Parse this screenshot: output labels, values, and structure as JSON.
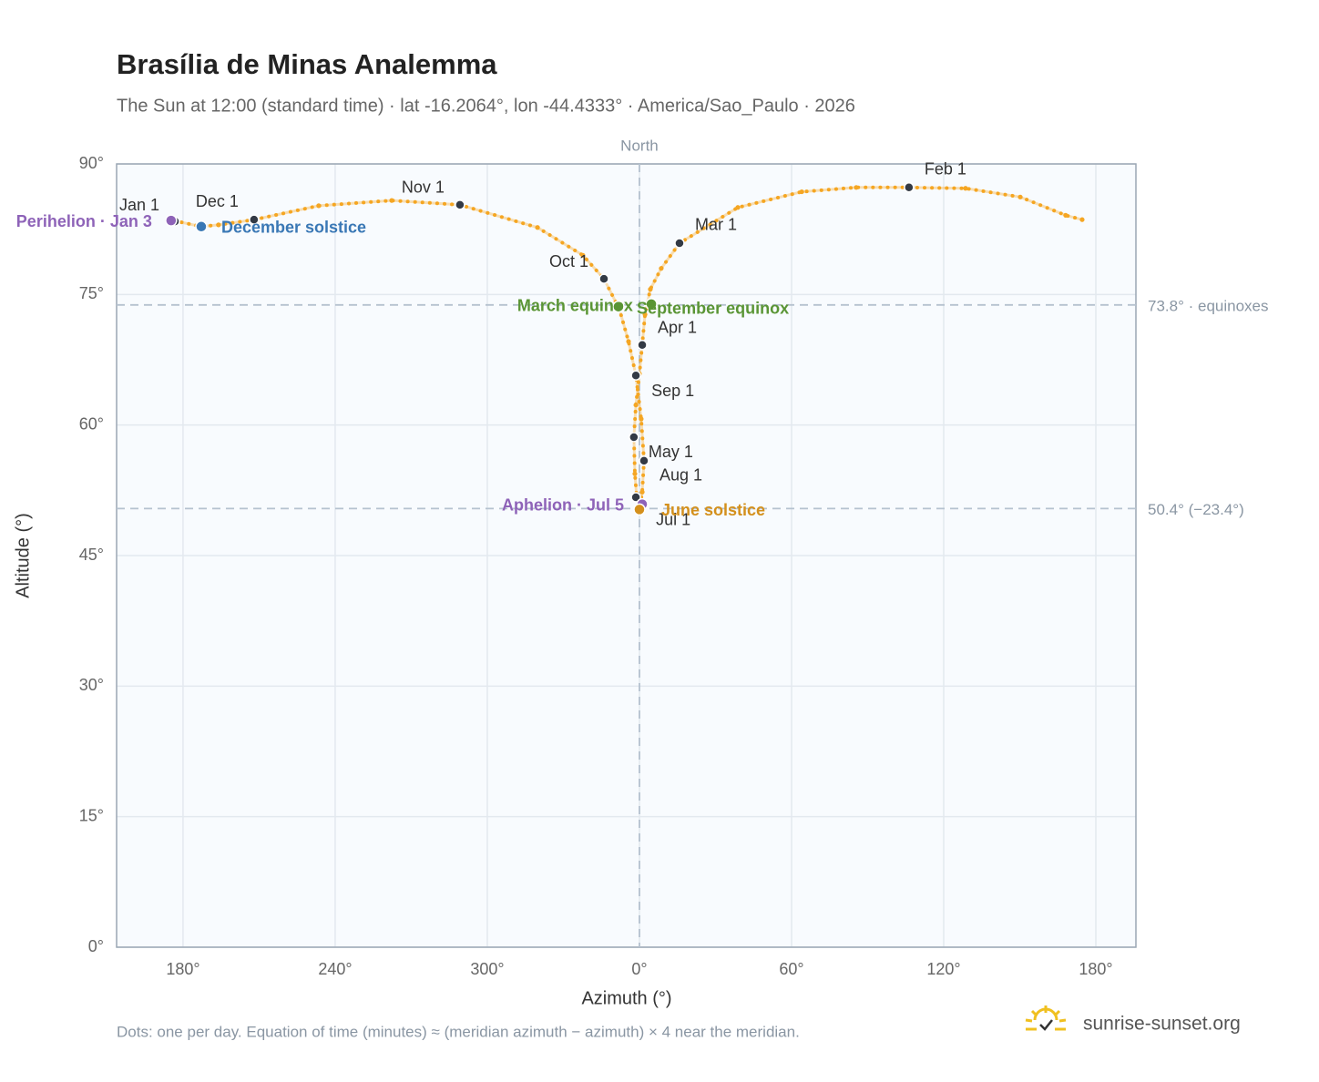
{
  "chart_data": {
    "type": "scatter",
    "title": "Brasília de Minas Analemma",
    "subtitle": "The Sun at 12:00 (standard time) · lat -16.2064°, lon -44.4333° · America/Sao_Paulo · 2026",
    "x_label": "Azimuth (°)",
    "y_label": "Altitude (°)",
    "xlim": [
      153.8,
      555.8
    ],
    "ylim": [
      0,
      90
    ],
    "xticks": [
      {
        "value": 180,
        "label": "180°"
      },
      {
        "value": 240,
        "label": "240°"
      },
      {
        "value": 300,
        "label": "300°"
      },
      {
        "value": 360,
        "label": "0°"
      },
      {
        "value": 420,
        "label": "60°"
      },
      {
        "value": 480,
        "label": "120°"
      },
      {
        "value": 540,
        "label": "180°"
      }
    ],
    "yticks": [
      {
        "value": 0,
        "label": "0°"
      },
      {
        "value": 15,
        "label": "15°"
      },
      {
        "value": 30,
        "label": "30°"
      },
      {
        "value": 45,
        "label": "45°"
      },
      {
        "value": 60,
        "label": "60°"
      },
      {
        "value": 75,
        "label": "75°"
      },
      {
        "value": 90,
        "label": "90°"
      }
    ],
    "grid": true,
    "series": [
      {
        "color": "#f5a623",
        "x": [
          176.8,
          175.3,
          null,
          534.6,
          528.1,
          510.2,
          488.6,
          466.3,
          445.5,
          424.0,
          398.8,
          375.8,
          368.6,
          364.3,
          362.2,
          361.1,
          360.0,
          358.6,
          357.8,
          358.2,
          358.9,
          360.0,
          361.1,
          361.8,
          360.7,
          358.6,
          355.7,
          352.1,
          346.0,
          337.7,
          319.8,
          289.2,
          262.3,
          233.5,
          208.0,
          194.0,
          187.2,
          177.8
        ],
        "values": [
          83.4,
          83.5,
          null,
          83.6,
          84.1,
          86.2,
          87.2,
          87.3,
          87.3,
          86.8,
          85.0,
          80.9,
          78.0,
          75.6,
          72.7,
          69.2,
          65.9,
          62.3,
          58.6,
          54.4,
          51.8,
          50.3,
          52.3,
          55.9,
          60.7,
          65.7,
          69.6,
          73.3,
          76.8,
          79.5,
          82.7,
          85.3,
          85.8,
          85.2,
          83.6,
          83.0,
          82.8,
          83.4
        ]
      }
    ],
    "month_markers": [
      {
        "text": "Jan 1",
        "x": 176.8,
        "y": 83.4
      },
      {
        "text": "Feb 1",
        "x": 466.3,
        "y": 87.3
      },
      {
        "text": "Mar 1",
        "x": 375.8,
        "y": 80.9
      },
      {
        "text": "Apr 1",
        "x": 361.1,
        "y": 69.2
      },
      {
        "text": "May 1",
        "x": 357.8,
        "y": 58.6
      },
      {
        "text": "Jul 1",
        "x": 358.6,
        "y": 51.7
      },
      {
        "text": "Aug 1",
        "x": 361.8,
        "y": 55.9
      },
      {
        "text": "Sep 1",
        "x": 358.6,
        "y": 65.7
      },
      {
        "text": "Oct 1",
        "x": 346.0,
        "y": 76.8
      },
      {
        "text": "Nov 1",
        "x": 289.2,
        "y": 85.3
      },
      {
        "text": "Dec 1",
        "x": 208.0,
        "y": 83.6
      }
    ],
    "events": [
      {
        "text": "Perihelion · Jan 3",
        "x": 175.3,
        "y": 83.5,
        "color": "#8e63b8"
      },
      {
        "text": "December solstice",
        "x": 187.2,
        "y": 82.8,
        "color": "#3a78b5"
      },
      {
        "text": "March equinox",
        "x": 351.7,
        "y": 73.6,
        "color": "#5a9535"
      },
      {
        "text": "September equinox",
        "x": 364.7,
        "y": 73.9,
        "color": "#5a9535"
      },
      {
        "text": "Aphelion · Jul 5",
        "x": 361.1,
        "y": 50.9,
        "color": "#8e63b8"
      },
      {
        "text": "June solstice",
        "x": 360.0,
        "y": 50.3,
        "color": "#d4901c"
      }
    ],
    "reference_lines": [
      {
        "axis": "y",
        "value": 73.8,
        "label": "73.8° · equinoxes"
      },
      {
        "axis": "y",
        "value": 50.4,
        "label": "50.4° (−23.4°)"
      },
      {
        "axis": "x",
        "value": 360,
        "label": "North"
      }
    ],
    "note": "Dots: one per day. Equation of time (minutes) ≈ (meridian azimuth − azimuth) × 4 near the meridian.",
    "brand": "sunrise-sunset.org"
  }
}
